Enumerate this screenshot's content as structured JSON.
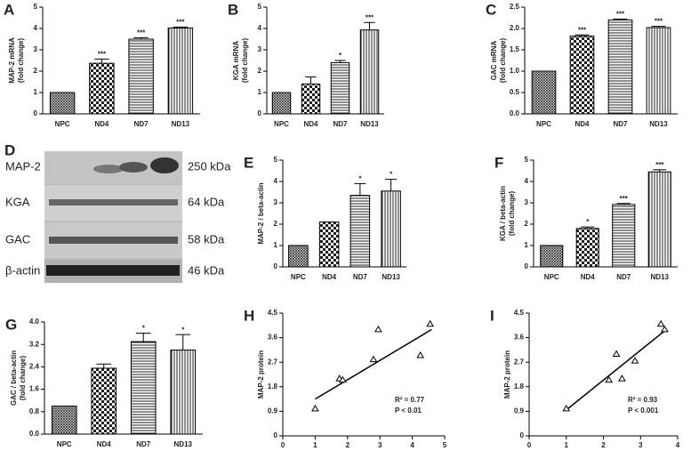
{
  "chart_data": [
    {
      "panel": "A",
      "type": "bar",
      "ylabel": [
        "MAP-2 mRNA",
        "(fold change)"
      ],
      "categories": [
        "NPC",
        "ND4",
        "ND7",
        "ND13"
      ],
      "values": [
        1,
        2.37,
        3.5,
        4.02
      ],
      "errors": [
        0,
        0.2,
        0.07,
        0.05
      ],
      "significance": [
        null,
        "***",
        "***",
        "***"
      ],
      "patterns": [
        "crosshatch",
        "checker",
        "horizontal",
        "vertical"
      ],
      "ylim": [
        0,
        5
      ],
      "yticks": [
        0,
        1,
        2,
        3,
        4,
        5
      ]
    },
    {
      "panel": "B",
      "type": "bar",
      "ylabel": [
        "KGA mRNA",
        "(fold change)"
      ],
      "categories": [
        "NPC",
        "ND4",
        "ND7",
        "ND13"
      ],
      "values": [
        1,
        1.4,
        2.4,
        3.93
      ],
      "errors": [
        0,
        0.33,
        0.1,
        0.35
      ],
      "significance": [
        null,
        null,
        "*",
        "***"
      ],
      "patterns": [
        "crosshatch",
        "checker",
        "horizontal",
        "vertical"
      ],
      "ylim": [
        0,
        5
      ],
      "yticks": [
        0,
        1,
        2,
        3,
        4,
        5
      ]
    },
    {
      "panel": "C",
      "type": "bar",
      "ylabel": [
        "GAC mRNA",
        "(fold change)"
      ],
      "categories": [
        "NPC",
        "ND4",
        "ND7",
        "ND13"
      ],
      "values": [
        1,
        1.82,
        2.2,
        2.02
      ],
      "errors": [
        0,
        0.03,
        0.02,
        0.03
      ],
      "significance": [
        null,
        "***",
        "***",
        "***"
      ],
      "patterns": [
        "crosshatch",
        "checker",
        "horizontal",
        "vertical"
      ],
      "ylim": [
        0,
        2.5
      ],
      "yticks": [
        {
          "value": 0,
          "label": "0.0"
        },
        0.5,
        {
          "value": 1,
          "label": "1.0"
        },
        1.5,
        {
          "value": 2,
          "label": "2.0"
        },
        2.5
      ]
    },
    {
      "panel": "E",
      "type": "bar",
      "ylabel": [
        "MAP-2 / beta-actin"
      ],
      "categories": [
        "NPC",
        "ND4",
        "ND7",
        "ND13"
      ],
      "values": [
        1,
        2.1,
        3.35,
        3.55
      ],
      "errors": [
        0,
        0,
        0.55,
        0.55
      ],
      "significance": [
        null,
        null,
        "*",
        "*"
      ],
      "patterns": [
        "crosshatch",
        "checker",
        "horizontal",
        "vertical"
      ],
      "ylim": [
        0,
        5
      ],
      "yticks": [
        0,
        1,
        2,
        3,
        4,
        5
      ]
    },
    {
      "panel": "F",
      "type": "bar",
      "ylabel": [
        "KGA / beta-actin",
        "(fold change)"
      ],
      "categories": [
        "NPC",
        "ND4",
        "ND7",
        "ND13"
      ],
      "values": [
        1,
        1.8,
        2.92,
        4.45
      ],
      "errors": [
        0,
        0.07,
        0.05,
        0.1
      ],
      "significance": [
        null,
        "*",
        "***",
        "***"
      ],
      "patterns": [
        "crosshatch",
        "checker",
        "horizontal",
        "vertical"
      ],
      "ylim": [
        0,
        5
      ],
      "yticks": [
        0,
        1,
        2,
        3,
        4,
        5
      ]
    },
    {
      "panel": "G",
      "type": "bar",
      "ylabel": [
        "GAC / beta-actin",
        "(fold change)"
      ],
      "categories": [
        "NPC",
        "ND4",
        "ND7",
        "ND13"
      ],
      "values": [
        1,
        2.35,
        3.3,
        3.0
      ],
      "errors": [
        0,
        0.15,
        0.3,
        0.55
      ],
      "significance": [
        null,
        null,
        "*",
        "*"
      ],
      "patterns": [
        "crosshatch",
        "checker",
        "horizontal",
        "vertical"
      ],
      "ylim": [
        0,
        4
      ],
      "yticks": [
        {
          "value": 0,
          "label": "0.0"
        },
        0.8,
        1.6,
        2.4,
        3.2,
        {
          "value": 4,
          "label": "4.0"
        }
      ]
    },
    {
      "panel": "H",
      "type": "scatter",
      "xlabel": "KGA protein",
      "ylabel": [
        "MAP-2 protein"
      ],
      "x": [
        1,
        1.75,
        1.85,
        2.8,
        2.95,
        4.25,
        4.55
      ],
      "values": [
        1,
        2.1,
        2.05,
        2.8,
        3.9,
        2.95,
        4.1
      ],
      "fit": {
        "x": [
          1,
          4.6
        ],
        "values": [
          1.35,
          3.9
        ]
      },
      "annotations": [
        "R² = 0.77",
        "P < 0.01"
      ],
      "xlim": [
        0,
        5
      ],
      "xticks": [
        0,
        1,
        2,
        3,
        4,
        5
      ],
      "ylim": [
        0,
        4.5
      ],
      "yticks": [
        0,
        0.9,
        1.8,
        2.7,
        3.6,
        4.5
      ]
    },
    {
      "panel": "I",
      "type": "scatter",
      "xlabel": "GAC protein",
      "ylabel": [
        "MAP-2 protein"
      ],
      "x": [
        1,
        2.15,
        2.35,
        2.5,
        2.85,
        3.55,
        3.65
      ],
      "values": [
        1,
        2.05,
        3.0,
        2.1,
        2.75,
        4.1,
        3.9
      ],
      "fit": {
        "x": [
          1,
          3.65
        ],
        "values": [
          0.95,
          3.85
        ]
      },
      "annotations": [
        "R² = 0.93",
        "P < 0.001"
      ],
      "xlim": [
        0,
        4
      ],
      "xticks": [
        0,
        1,
        2,
        3,
        4
      ],
      "ylim": [
        0,
        4.5
      ],
      "yticks": [
        0,
        0.9,
        1.8,
        2.7,
        3.6,
        4.5
      ]
    }
  ],
  "blot": {
    "panel": "D",
    "bands": [
      {
        "protein": "MAP-2",
        "size": "250 kDa"
      },
      {
        "protein": "KGA",
        "size": "64 kDa"
      },
      {
        "protein": "GAC",
        "size": "58 kDa"
      },
      {
        "protein": "β-actin",
        "size": "46 kDa"
      }
    ]
  }
}
